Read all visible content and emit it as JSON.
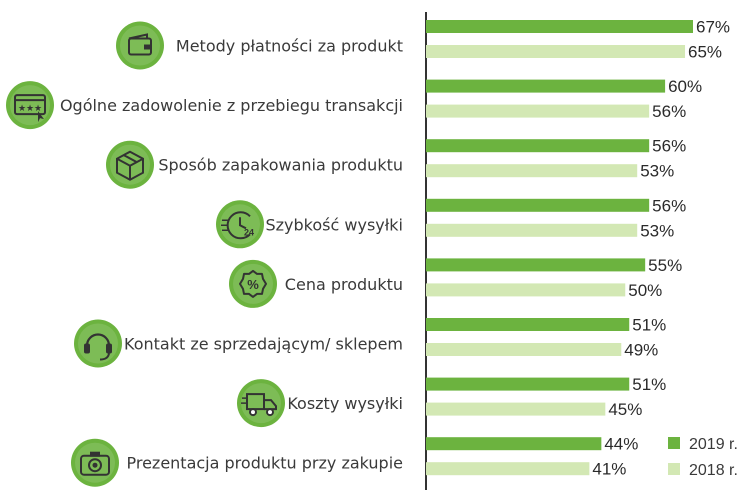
{
  "chart_data": {
    "type": "bar",
    "orientation": "horizontal",
    "title": "",
    "xlabel": "",
    "ylabel": "",
    "xlim": [
      0,
      70
    ],
    "grid": false,
    "legend_position": "bottom-right",
    "categories": [
      "Metody płatności za produkt",
      "Ogólne zadowolenie z przebiegu transakcji",
      "Sposób zapakowania produktu",
      "Szybkość wysyłki",
      "Cena produktu",
      "Kontakt ze sprzedającym/ sklepem",
      "Koszty wysyłki",
      "Prezentacja produktu przy zakupie"
    ],
    "icons": [
      "wallet-icon",
      "rating-icon",
      "package-icon",
      "delivery-time-icon",
      "percent-icon",
      "headset-icon",
      "truck-icon",
      "camera-icon"
    ],
    "series": [
      {
        "name": "2019 r.",
        "color": "#6cb33f",
        "values": [
          67,
          60,
          56,
          56,
          55,
          51,
          51,
          44
        ],
        "labels": [
          "67%",
          "60%",
          "56%",
          "56%",
          "55%",
          "51%",
          "51%",
          "44%"
        ]
      },
      {
        "name": "2018 r.",
        "color": "#d3e8b4",
        "values": [
          65,
          56,
          53,
          53,
          50,
          49,
          45,
          41
        ],
        "labels": [
          "65%",
          "56%",
          "53%",
          "53%",
          "50%",
          "49%",
          "45%",
          "41%"
        ]
      }
    ]
  }
}
